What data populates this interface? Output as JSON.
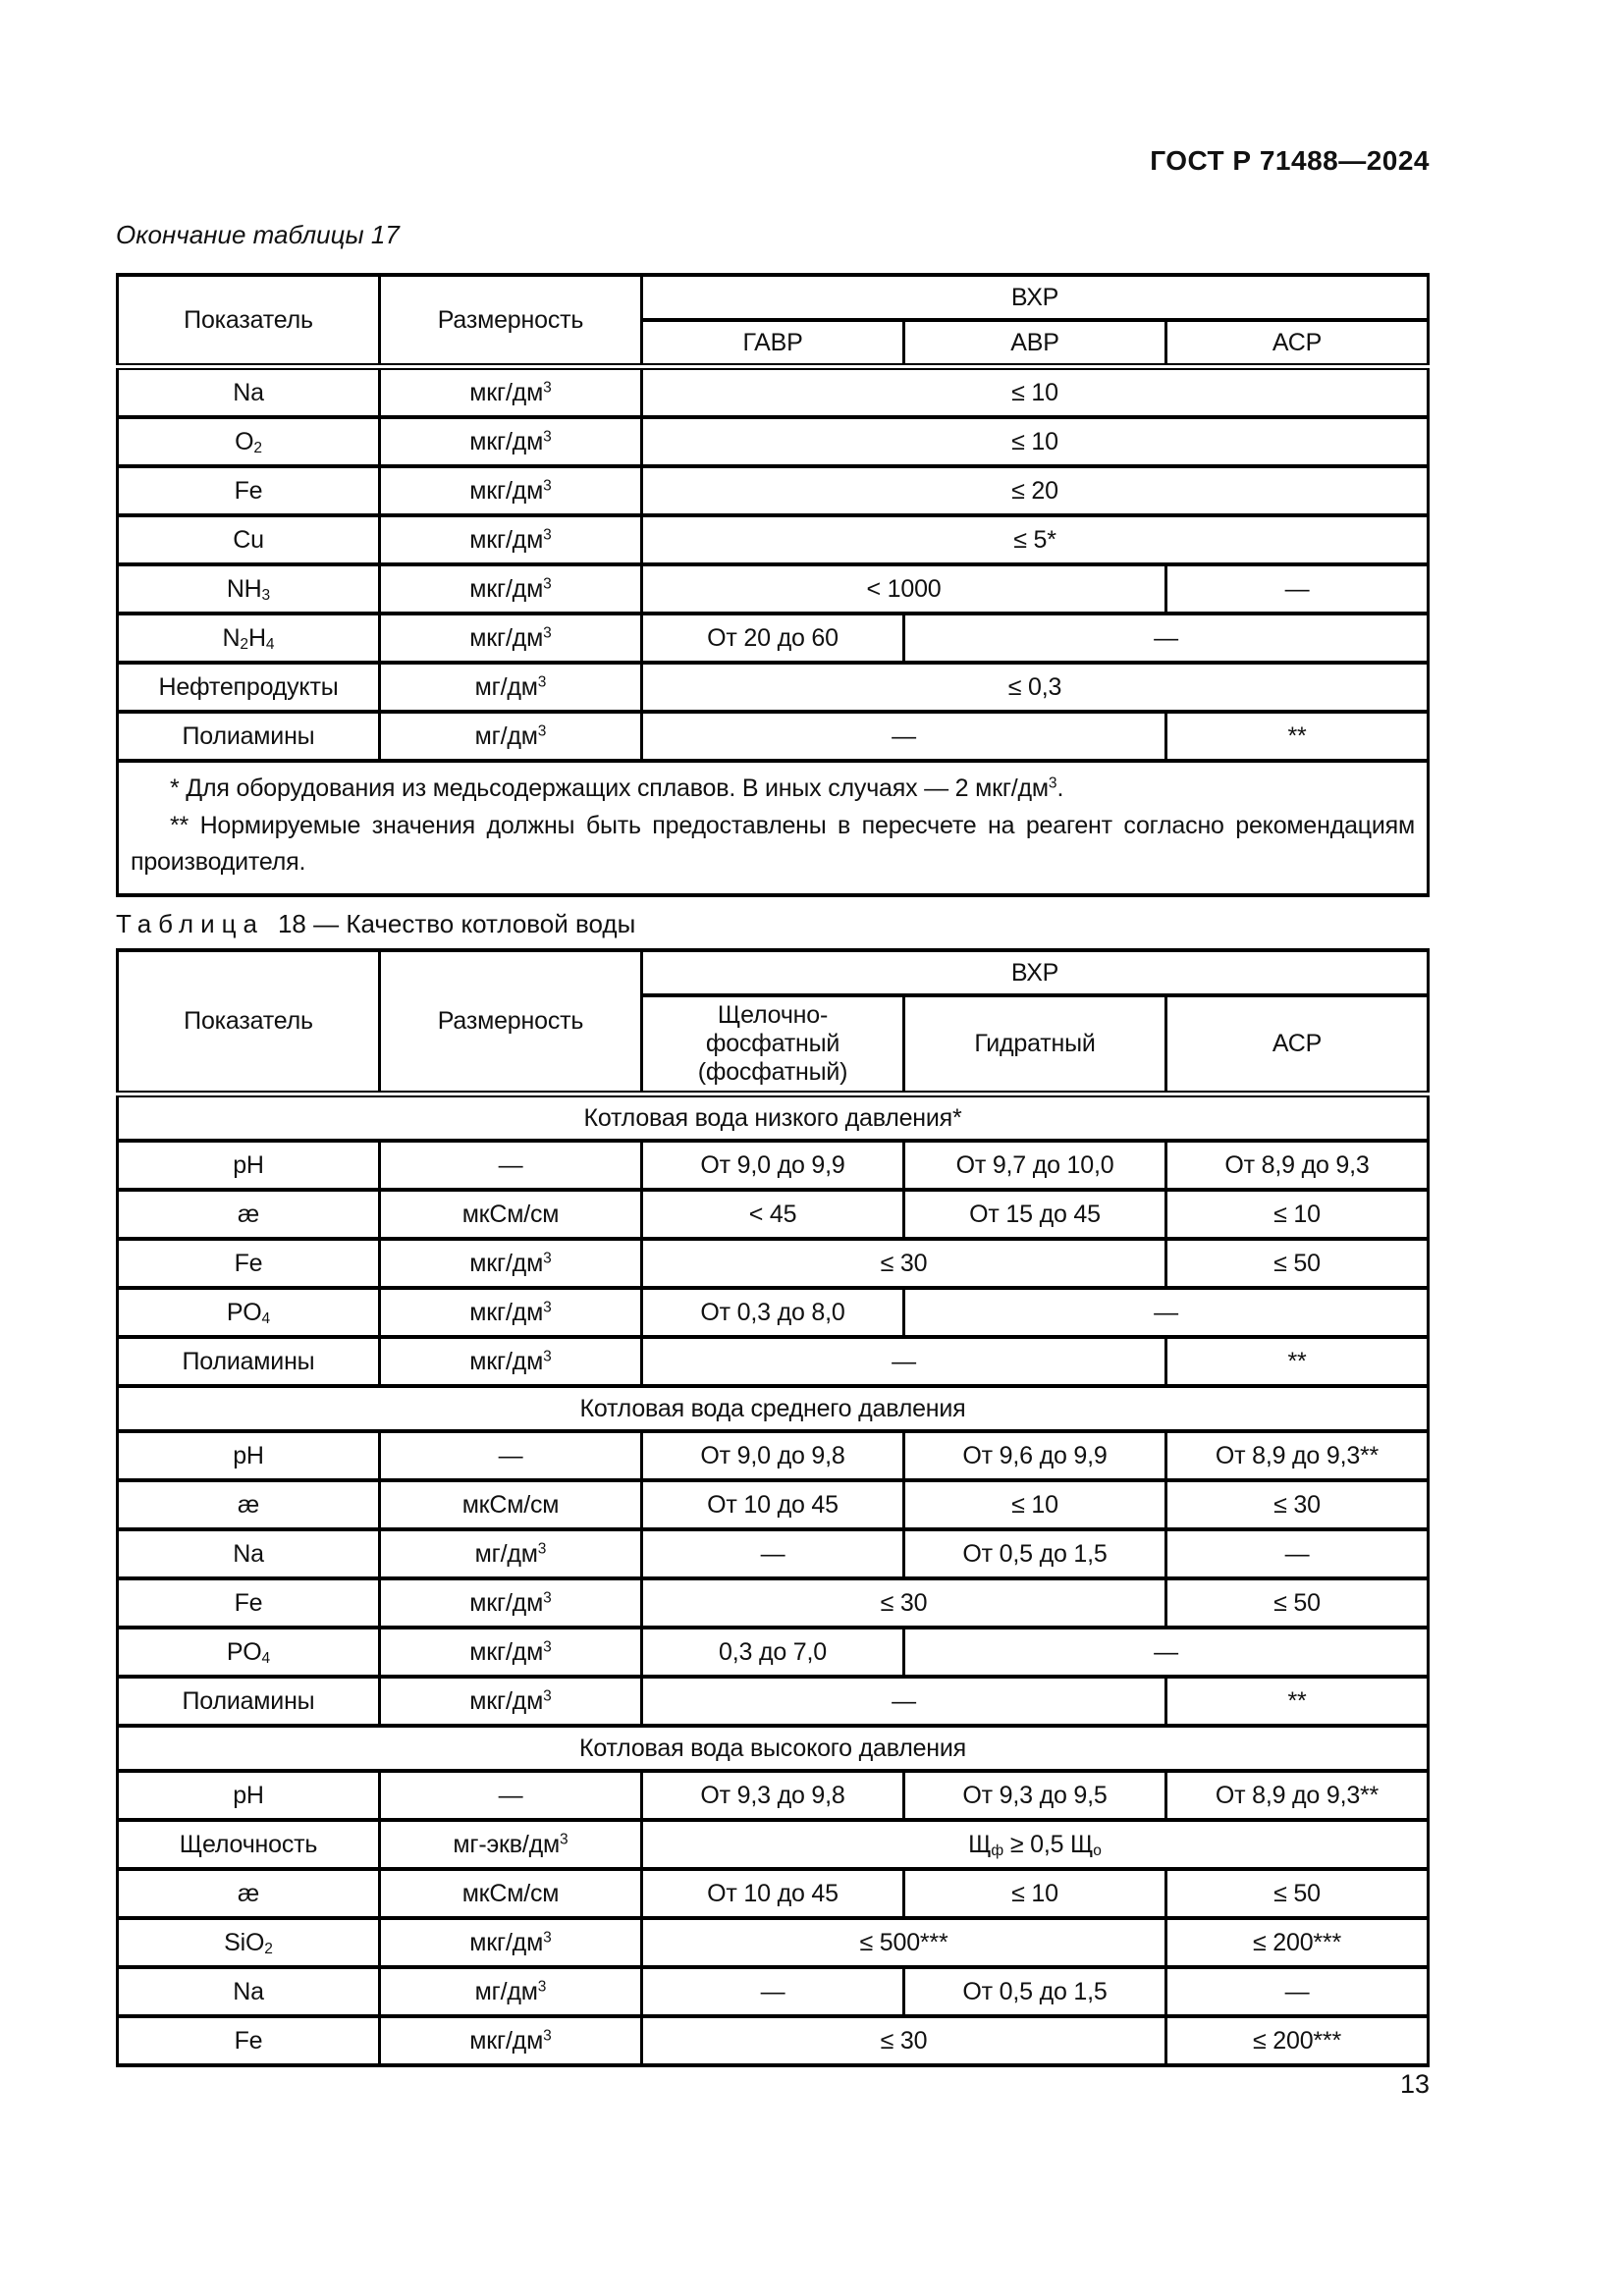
{
  "page": {
    "doc_code": "ГОСТ Р 71488—2024",
    "page_number": "13"
  },
  "table17": {
    "caption": "Окончание таблицы 17",
    "header": {
      "indicator": "Показатель",
      "dimension": "Размерность",
      "group": "ВХР",
      "subcols": [
        "ГАВР",
        "АВР",
        "АСР"
      ]
    },
    "rows": [
      {
        "cells": [
          {
            "c": "Na",
            "span": 1
          },
          {
            "c": [
              [
                "t",
                "мкг/дм"
              ],
              [
                "sup",
                "3"
              ]
            ],
            "span": 1
          },
          {
            "c": "≤ 10",
            "span": 3
          }
        ]
      },
      {
        "cells": [
          {
            "c": [
              [
                "t",
                "O"
              ],
              [
                "sub",
                "2"
              ]
            ],
            "span": 1
          },
          {
            "c": [
              [
                "t",
                "мкг/дм"
              ],
              [
                "sup",
                "3"
              ]
            ],
            "span": 1
          },
          {
            "c": "≤ 10",
            "span": 3
          }
        ]
      },
      {
        "cells": [
          {
            "c": "Fe",
            "span": 1
          },
          {
            "c": [
              [
                "t",
                "мкг/дм"
              ],
              [
                "sup",
                "3"
              ]
            ],
            "span": 1
          },
          {
            "c": "≤ 20",
            "span": 3
          }
        ]
      },
      {
        "cells": [
          {
            "c": "Cu",
            "span": 1
          },
          {
            "c": [
              [
                "t",
                "мкг/дм"
              ],
              [
                "sup",
                "3"
              ]
            ],
            "span": 1
          },
          {
            "c": "≤ 5*",
            "span": 3
          }
        ]
      },
      {
        "cells": [
          {
            "c": [
              [
                "t",
                "NH"
              ],
              [
                "sub",
                "3"
              ]
            ],
            "span": 1
          },
          {
            "c": [
              [
                "t",
                "мкг/дм"
              ],
              [
                "sup",
                "3"
              ]
            ],
            "span": 1
          },
          {
            "c": "< 1000",
            "span": 2
          },
          {
            "c": "—",
            "span": 1
          }
        ]
      },
      {
        "cells": [
          {
            "c": [
              [
                "t",
                "N"
              ],
              [
                "sub",
                "2"
              ],
              [
                "t",
                "H"
              ],
              [
                "sub",
                "4"
              ]
            ],
            "span": 1
          },
          {
            "c": [
              [
                "t",
                "мкг/дм"
              ],
              [
                "sup",
                "3"
              ]
            ],
            "span": 1
          },
          {
            "c": "От 20 до 60",
            "span": 1
          },
          {
            "c": "—",
            "span": 2
          }
        ]
      },
      {
        "cells": [
          {
            "c": "Нефтепродукты",
            "span": 1
          },
          {
            "c": [
              [
                "t",
                "мг/дм"
              ],
              [
                "sup",
                "3"
              ]
            ],
            "span": 1
          },
          {
            "c": "≤ 0,3",
            "span": 3
          }
        ]
      },
      {
        "cells": [
          {
            "c": "Полиамины",
            "span": 1
          },
          {
            "c": [
              [
                "t",
                "мг/дм"
              ],
              [
                "sup",
                "3"
              ]
            ],
            "span": 1
          },
          {
            "c": "—",
            "span": 2
          },
          {
            "c": "**",
            "span": 1
          }
        ]
      },
      {
        "type": "footnote",
        "paragraphs": [
          [
            [
              "t",
              "* Для оборудования из медьсодержащих сплавов. В иных случаях — 2 мкг/дм"
            ],
            [
              "sup",
              "3"
            ],
            [
              "t",
              "."
            ]
          ],
          [
            [
              "t",
              "** Нормируемые значения должны быть предоставлены в пересчете на реагент согласно рекомендациям производителя."
            ]
          ]
        ]
      }
    ]
  },
  "table18": {
    "caption_label": "Таблица",
    "caption_rest": "18 — Качество котловой воды",
    "header": {
      "indicator": "Показатель",
      "dimension": "Размерность",
      "group": "ВХР",
      "subcols": [
        "Щелочно-фосфатный (фосфатный)",
        "Гидратный",
        "АСР"
      ]
    },
    "rows": [
      {
        "type": "section",
        "cells": [
          {
            "c": "Котловая вода низкого давления*",
            "span": 5
          }
        ]
      },
      {
        "cells": [
          {
            "c": "pH",
            "span": 1
          },
          {
            "c": "—",
            "span": 1
          },
          {
            "c": "От 9,0 до 9,9",
            "span": 1
          },
          {
            "c": "От 9,7 до 10,0",
            "span": 1
          },
          {
            "c": "От 8,9 до 9,3",
            "span": 1
          }
        ]
      },
      {
        "cells": [
          {
            "c": "æ",
            "span": 1
          },
          {
            "c": "мкСм/см",
            "span": 1
          },
          {
            "c": "< 45",
            "span": 1
          },
          {
            "c": "От 15 до 45",
            "span": 1
          },
          {
            "c": "≤ 10",
            "span": 1
          }
        ]
      },
      {
        "cells": [
          {
            "c": "Fe",
            "span": 1
          },
          {
            "c": [
              [
                "t",
                "мкг/дм"
              ],
              [
                "sup",
                "3"
              ]
            ],
            "span": 1
          },
          {
            "c": "≤ 30",
            "span": 2
          },
          {
            "c": "≤ 50",
            "span": 1
          }
        ]
      },
      {
        "cells": [
          {
            "c": [
              [
                "t",
                "PO"
              ],
              [
                "sub",
                "4"
              ]
            ],
            "span": 1
          },
          {
            "c": [
              [
                "t",
                "мкг/дм"
              ],
              [
                "sup",
                "3"
              ]
            ],
            "span": 1
          },
          {
            "c": "От 0,3 до 8,0",
            "span": 1
          },
          {
            "c": "—",
            "span": 2
          }
        ]
      },
      {
        "cells": [
          {
            "c": "Полиамины",
            "span": 1
          },
          {
            "c": [
              [
                "t",
                "мкг/дм"
              ],
              [
                "sup",
                "3"
              ]
            ],
            "span": 1
          },
          {
            "c": "—",
            "span": 2
          },
          {
            "c": "**",
            "span": 1
          }
        ]
      },
      {
        "type": "section",
        "cells": [
          {
            "c": "Котловая вода среднего давления",
            "span": 5
          }
        ]
      },
      {
        "cells": [
          {
            "c": "pH",
            "span": 1
          },
          {
            "c": "—",
            "span": 1
          },
          {
            "c": "От 9,0 до 9,8",
            "span": 1
          },
          {
            "c": "От 9,6 до 9,9",
            "span": 1
          },
          {
            "c": "От 8,9 до 9,3**",
            "span": 1
          }
        ]
      },
      {
        "cells": [
          {
            "c": "æ",
            "span": 1
          },
          {
            "c": "мкСм/см",
            "span": 1
          },
          {
            "c": "От 10 до 45",
            "span": 1
          },
          {
            "c": "≤ 10",
            "span": 1
          },
          {
            "c": "≤ 30",
            "span": 1
          }
        ]
      },
      {
        "cells": [
          {
            "c": "Na",
            "span": 1
          },
          {
            "c": [
              [
                "t",
                "мг/дм"
              ],
              [
                "sup",
                "3"
              ]
            ],
            "span": 1
          },
          {
            "c": "—",
            "span": 1
          },
          {
            "c": "От 0,5 до 1,5",
            "span": 1
          },
          {
            "c": "—",
            "span": 1
          }
        ]
      },
      {
        "cells": [
          {
            "c": "Fe",
            "span": 1
          },
          {
            "c": [
              [
                "t",
                "мкг/дм"
              ],
              [
                "sup",
                "3"
              ]
            ],
            "span": 1
          },
          {
            "c": "≤ 30",
            "span": 2
          },
          {
            "c": "≤ 50",
            "span": 1
          }
        ]
      },
      {
        "cells": [
          {
            "c": [
              [
                "t",
                "PO"
              ],
              [
                "sub",
                "4"
              ]
            ],
            "span": 1
          },
          {
            "c": [
              [
                "t",
                "мкг/дм"
              ],
              [
                "sup",
                "3"
              ]
            ],
            "span": 1
          },
          {
            "c": "0,3 до 7,0",
            "span": 1
          },
          {
            "c": "—",
            "span": 2
          }
        ]
      },
      {
        "cells": [
          {
            "c": "Полиамины",
            "span": 1
          },
          {
            "c": [
              [
                "t",
                "мкг/дм"
              ],
              [
                "sup",
                "3"
              ]
            ],
            "span": 1
          },
          {
            "c": "—",
            "span": 2
          },
          {
            "c": "**",
            "span": 1
          }
        ]
      },
      {
        "type": "section",
        "cells": [
          {
            "c": "Котловая вода высокого давления",
            "span": 5
          }
        ]
      },
      {
        "cells": [
          {
            "c": "pH",
            "span": 1
          },
          {
            "c": "—",
            "span": 1
          },
          {
            "c": "От 9,3 до 9,8",
            "span": 1
          },
          {
            "c": "От 9,3 до 9,5",
            "span": 1
          },
          {
            "c": "От 8,9 до 9,3**",
            "span": 1
          }
        ]
      },
      {
        "cells": [
          {
            "c": "Щелочность",
            "span": 1
          },
          {
            "c": [
              [
                "t",
                "мг-экв/дм"
              ],
              [
                "sup",
                "3"
              ]
            ],
            "span": 1
          },
          {
            "c": [
              [
                "t",
                "Щ"
              ],
              [
                "sub",
                "ф"
              ],
              [
                "t",
                " ≥ 0,5 Щ"
              ],
              [
                "sub",
                "о"
              ]
            ],
            "span": 3
          }
        ]
      },
      {
        "cells": [
          {
            "c": "æ",
            "span": 1
          },
          {
            "c": "мкСм/см",
            "span": 1
          },
          {
            "c": "От 10 до 45",
            "span": 1
          },
          {
            "c": "≤ 10",
            "span": 1
          },
          {
            "c": "≤ 50",
            "span": 1
          }
        ]
      },
      {
        "cells": [
          {
            "c": [
              [
                "t",
                "SiO"
              ],
              [
                "sub",
                "2"
              ]
            ],
            "span": 1
          },
          {
            "c": [
              [
                "t",
                "мкг/дм"
              ],
              [
                "sup",
                "3"
              ]
            ],
            "span": 1
          },
          {
            "c": "≤ 500***",
            "span": 2
          },
          {
            "c": "≤ 200***",
            "span": 1
          }
        ]
      },
      {
        "cells": [
          {
            "c": "Na",
            "span": 1
          },
          {
            "c": [
              [
                "t",
                "мг/дм"
              ],
              [
                "sup",
                "3"
              ]
            ],
            "span": 1
          },
          {
            "c": "—",
            "span": 1
          },
          {
            "c": "От 0,5 до 1,5",
            "span": 1
          },
          {
            "c": "—",
            "span": 1
          }
        ]
      },
      {
        "cells": [
          {
            "c": "Fe",
            "span": 1
          },
          {
            "c": [
              [
                "t",
                "мкг/дм"
              ],
              [
                "sup",
                "3"
              ]
            ],
            "span": 1
          },
          {
            "c": "≤ 30",
            "span": 2
          },
          {
            "c": "≤ 200***",
            "span": 1
          }
        ]
      }
    ]
  }
}
